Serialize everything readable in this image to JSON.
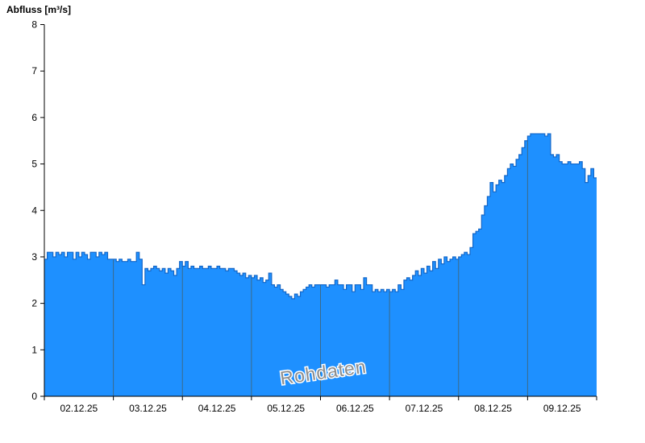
{
  "chart": {
    "title": "Abfluss [m³/s]"
  },
  "chart_data": {
    "type": "area",
    "title": "Abfluss [m³/s]",
    "ylabel": "Abfluss [m³/s]",
    "xlabel": "",
    "watermark": "Rohdaten",
    "ylim": [
      0,
      8
    ],
    "yticks": [
      0,
      1,
      2,
      3,
      4,
      5,
      6,
      7,
      8
    ],
    "x_labels": [
      "02.12.25",
      "03.12.25",
      "04.12.25",
      "05.12.25",
      "06.12.25",
      "07.12.25",
      "08.12.25",
      "09.12.25"
    ],
    "points_per_day": 24,
    "grid": "vertical-day-boundaries",
    "legend_position": "none",
    "colors": {
      "fill": "#1E90FF",
      "edge": "#1266C8",
      "grid": "#3C6A88",
      "axis": "#000000",
      "watermark": "#8C8C8C"
    },
    "values": [
      2.95,
      3.1,
      3.1,
      3.0,
      3.1,
      3.05,
      3.1,
      3.0,
      3.1,
      3.1,
      2.95,
      3.1,
      3.0,
      3.1,
      3.05,
      2.95,
      3.1,
      3.1,
      3.0,
      3.1,
      3.05,
      3.1,
      2.95,
      2.95,
      2.95,
      2.9,
      2.95,
      2.9,
      2.9,
      2.95,
      2.9,
      2.9,
      3.1,
      2.95,
      2.4,
      2.75,
      2.7,
      2.75,
      2.8,
      2.75,
      2.7,
      2.75,
      2.65,
      2.75,
      2.7,
      2.6,
      2.75,
      2.9,
      2.8,
      2.9,
      2.75,
      2.8,
      2.75,
      2.75,
      2.8,
      2.75,
      2.75,
      2.8,
      2.75,
      2.75,
      2.8,
      2.75,
      2.75,
      2.7,
      2.75,
      2.75,
      2.7,
      2.65,
      2.6,
      2.65,
      2.55,
      2.6,
      2.55,
      2.6,
      2.5,
      2.55,
      2.45,
      2.5,
      2.65,
      2.4,
      2.35,
      2.4,
      2.3,
      2.25,
      2.2,
      2.15,
      2.1,
      2.2,
      2.15,
      2.25,
      2.3,
      2.35,
      2.4,
      2.35,
      2.4,
      2.4,
      2.4,
      2.4,
      2.35,
      2.4,
      2.4,
      2.5,
      2.4,
      2.4,
      2.3,
      2.4,
      2.4,
      2.25,
      2.4,
      2.4,
      2.3,
      2.55,
      2.4,
      2.4,
      2.25,
      2.3,
      2.25,
      2.3,
      2.25,
      2.3,
      2.25,
      2.3,
      2.25,
      2.4,
      2.3,
      2.5,
      2.55,
      2.5,
      2.6,
      2.7,
      2.6,
      2.75,
      2.65,
      2.8,
      2.7,
      2.9,
      2.75,
      2.95,
      2.85,
      3.0,
      2.9,
      2.95,
      3.0,
      2.95,
      3.0,
      3.05,
      3.1,
      3.05,
      3.2,
      3.5,
      3.55,
      3.6,
      3.9,
      4.1,
      4.3,
      4.6,
      4.4,
      4.55,
      4.65,
      4.6,
      4.75,
      4.9,
      5.0,
      4.95,
      5.1,
      5.2,
      5.35,
      5.5,
      5.6,
      5.65,
      5.65,
      5.65,
      5.65,
      5.65,
      5.6,
      5.65,
      5.2,
      5.15,
      5.2,
      5.05,
      5.0,
      5.0,
      5.05,
      5.0,
      5.0,
      5.0,
      5.05,
      4.9,
      4.6,
      4.75,
      4.9,
      4.7
    ]
  }
}
